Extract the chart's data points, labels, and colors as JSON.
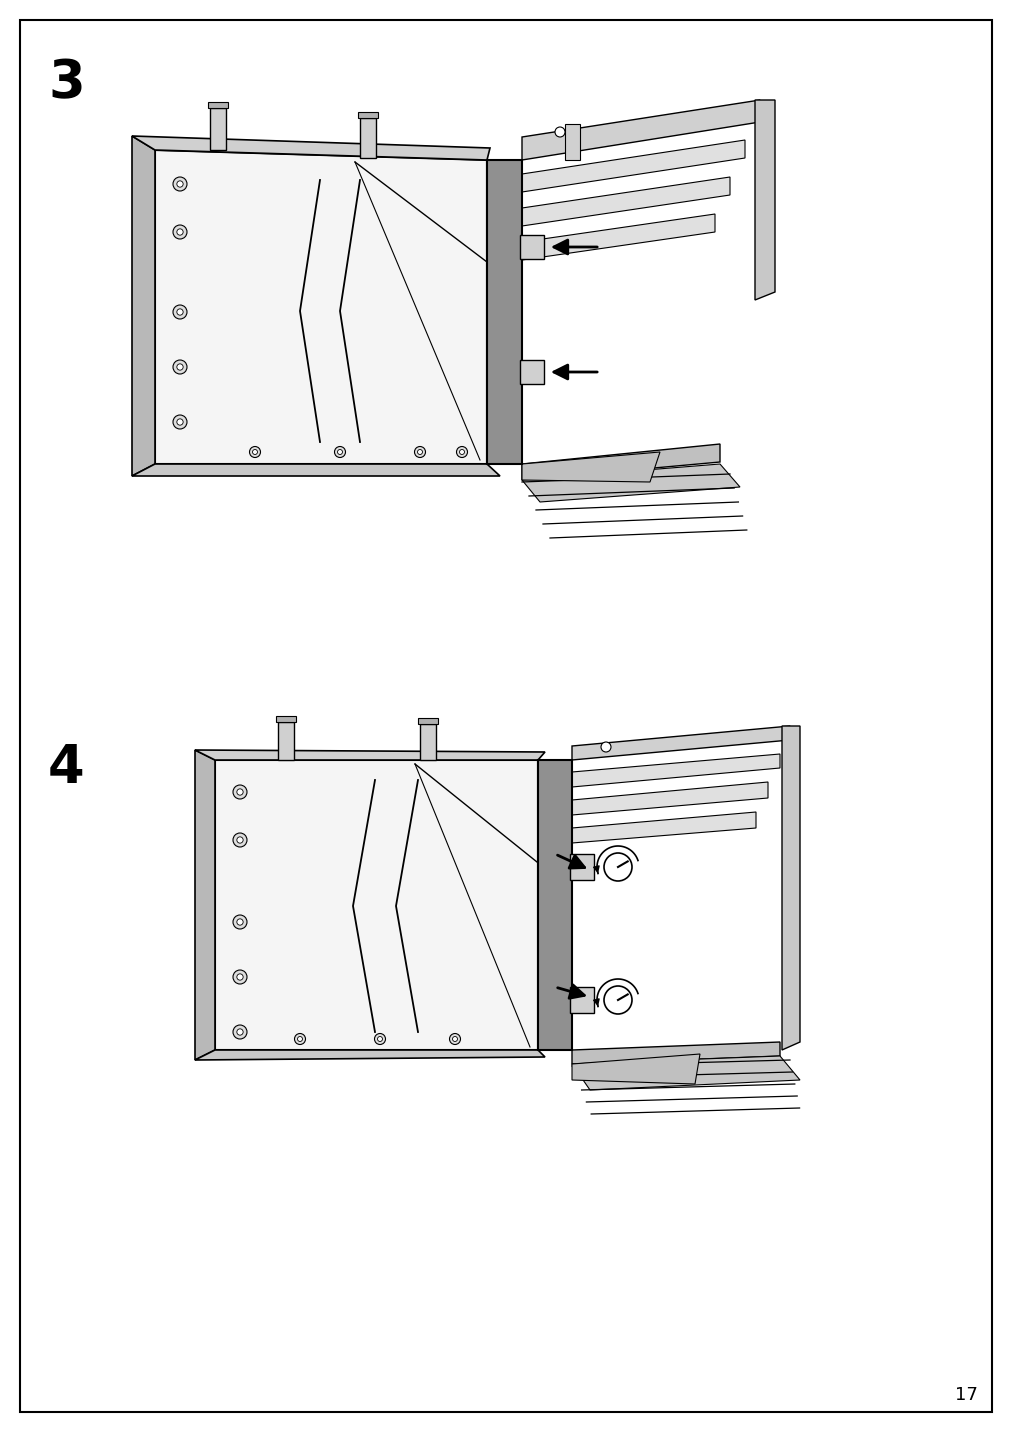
{
  "page_num": "17",
  "step3_label": "3",
  "step4_label": "4",
  "bg_color": "#ffffff",
  "border_color": "#000000",
  "gray_light": "#e8e8e8",
  "gray_med": "#c0c0c0",
  "gray_dark": "#888888",
  "gray_side": "#b0b0b0",
  "step_label_fontsize": 38,
  "page_num_fontsize": 13
}
